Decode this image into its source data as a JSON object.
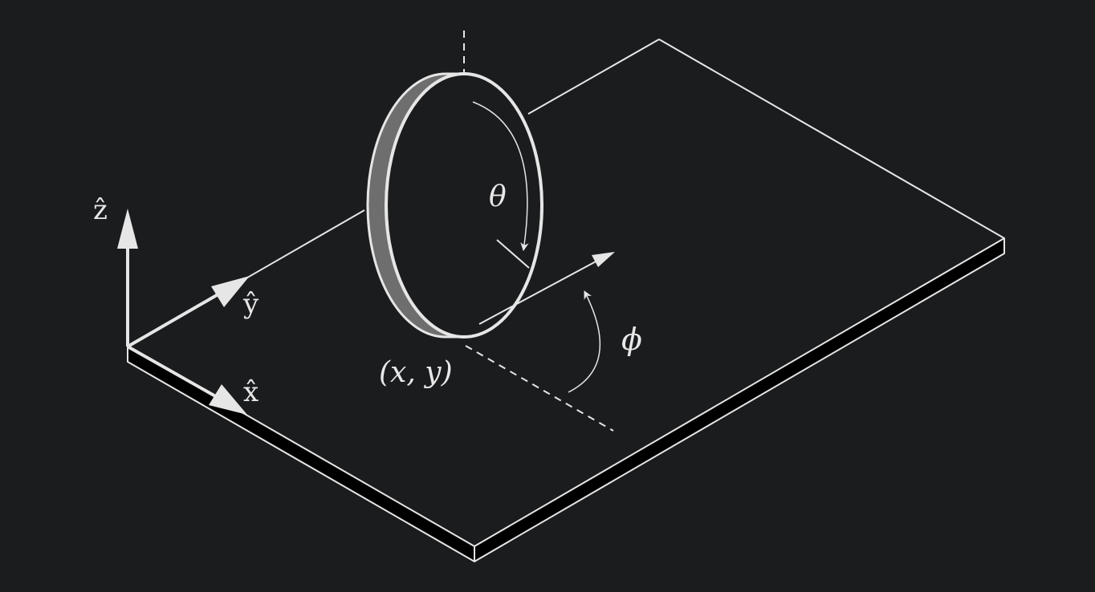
{
  "colors": {
    "background": "#1b1c1e",
    "stroke": "#e6e6e6",
    "wheel_rim": "#6e6e6e",
    "plate_edge": "#000000"
  },
  "labels": {
    "z_axis": "ẑ",
    "y_axis": "ŷ",
    "x_axis": "x̂",
    "theta": "θ",
    "phi": "ϕ",
    "position": "(x, y)"
  }
}
